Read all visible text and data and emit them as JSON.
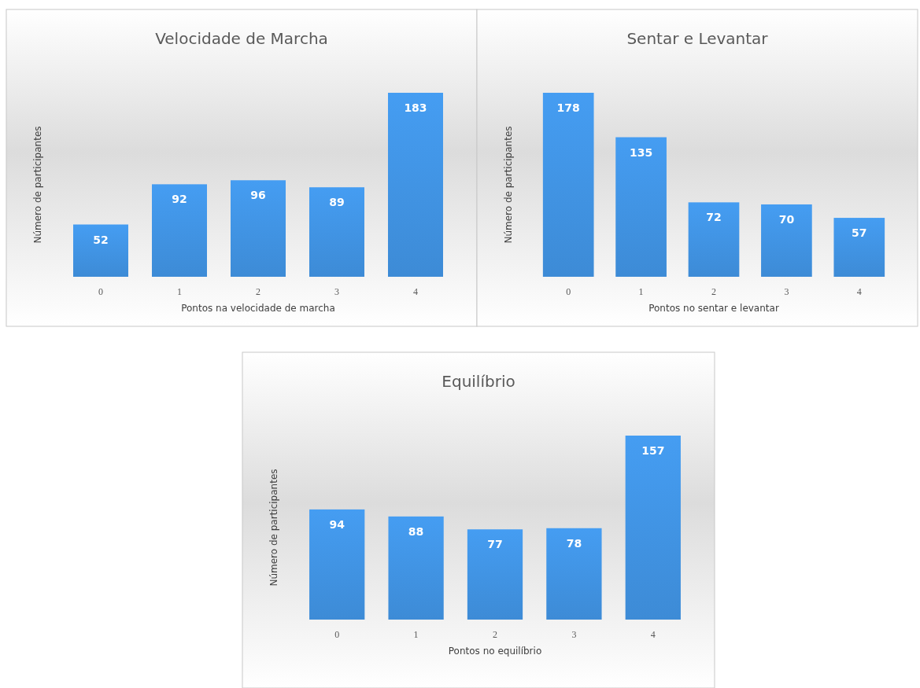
{
  "chart_data": [
    {
      "type": "bar",
      "title": "Velocidade de Marcha",
      "xlabel": "Pontos na velocidade de marcha",
      "ylabel": "Número de participantes",
      "categories": [
        "0",
        "1",
        "2",
        "3",
        "4"
      ],
      "values": [
        52,
        92,
        96,
        89,
        183
      ],
      "color": "#3d8bd6",
      "data_labels": true
    },
    {
      "type": "bar",
      "title": "Sentar e Levantar",
      "xlabel": "Pontos no sentar e levantar",
      "ylabel": "Número de participantes",
      "categories": [
        "0",
        "1",
        "2",
        "3",
        "4"
      ],
      "values": [
        178,
        135,
        72,
        70,
        57
      ],
      "color": "#3d8bd6",
      "data_labels": true
    },
    {
      "type": "bar",
      "title": "Equilíbrio",
      "xlabel": "Pontos no equilíbrio",
      "ylabel": "Número de participantes",
      "categories": [
        "0",
        "1",
        "2",
        "3",
        "4"
      ],
      "values": [
        94,
        88,
        77,
        78,
        157
      ],
      "color": "#3d8bd6",
      "data_labels": true
    }
  ]
}
